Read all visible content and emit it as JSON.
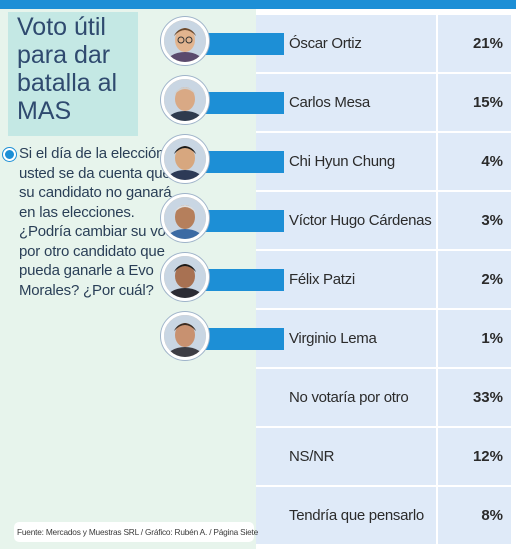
{
  "title": "Voto útil para dar batalla al MAS",
  "question": "Si el día de la elección usted se da cuenta que su candidato no ganará en las elecciones. ¿Podría cambiar su voto por otro candidato que pueda ganarle a Evo Morales? ¿Por cuál?",
  "source": "Fuente: Mercados y Muestras SRL / Gráfico: Rubén A. / Página Siete",
  "colors": {
    "accent": "#1d8fd6",
    "row_bg": "#dfeaf8",
    "left_panel": "#e7f4ec",
    "title_box": "#c4e8e4"
  },
  "chart_data": {
    "type": "table",
    "categories": [
      "Óscar Ortiz",
      "Carlos Mesa",
      "Chi Hyun Chung",
      "Víctor Hugo Cárdenas",
      "Félix Patzi",
      "Virginio Lema",
      "No votaría por otro",
      "NS/NR",
      "Tendría que pensarlo"
    ],
    "values": [
      21,
      15,
      4,
      3,
      2,
      1,
      33,
      12,
      8
    ],
    "value_labels": [
      "21%",
      "15%",
      "4%",
      "3%",
      "2%",
      "1%",
      "33%",
      "12%",
      "8%"
    ],
    "has_photo": [
      true,
      true,
      true,
      true,
      true,
      true,
      false,
      false,
      false
    ],
    "avatar_icons": [
      "portrait-glasses-icon",
      "portrait-gray-hair-icon",
      "portrait-dark-hair-icon",
      "portrait-elder-icon",
      "portrait-young-icon",
      "portrait-bald-icon"
    ]
  }
}
